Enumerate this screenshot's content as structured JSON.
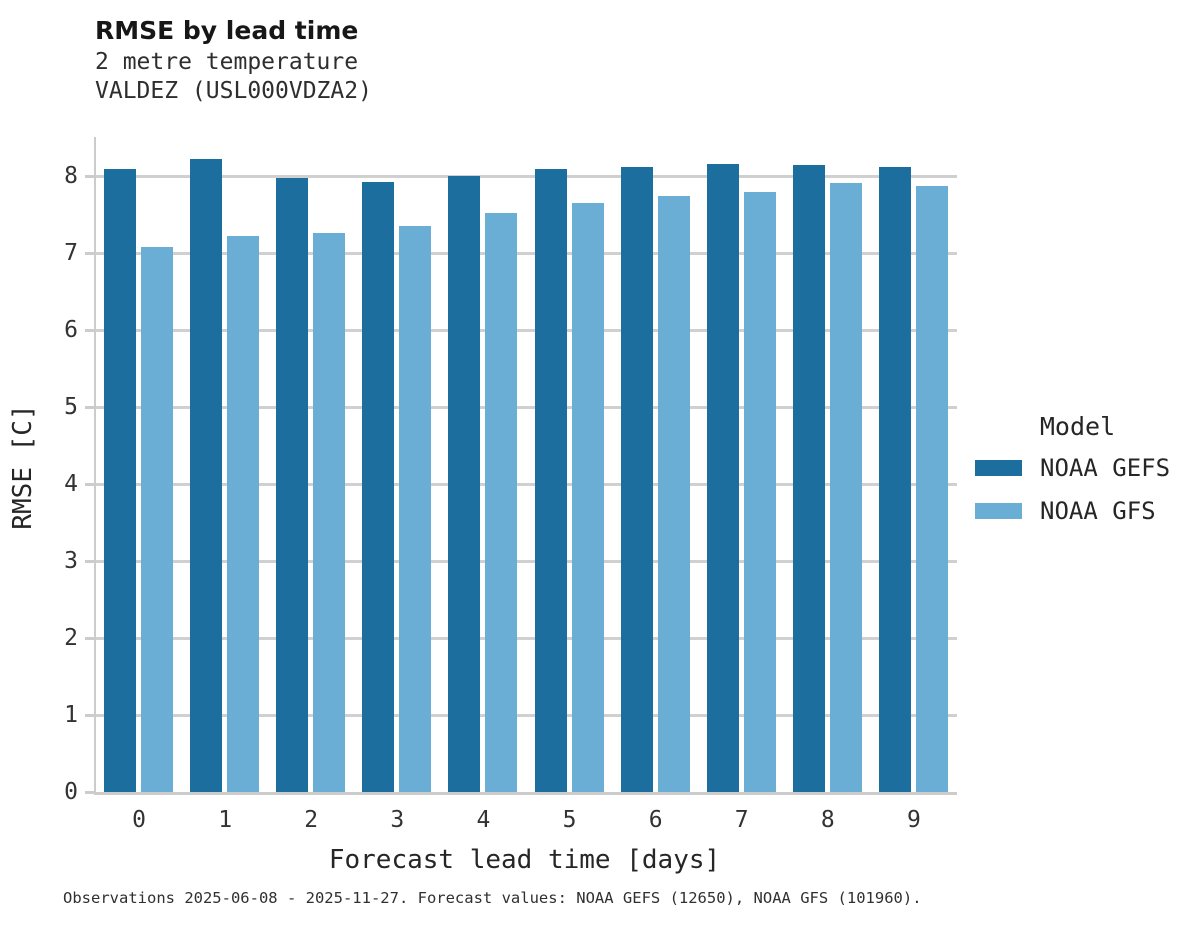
{
  "chart_data": {
    "type": "bar",
    "title": "RMSE by lead time",
    "subtitle": [
      "2 metre temperature",
      "VALDEZ (USL000VDZA2)"
    ],
    "xlabel": "Forecast lead time [days]",
    "ylabel": "RMSE [C]",
    "categories": [
      "0",
      "1",
      "2",
      "3",
      "4",
      "5",
      "6",
      "7",
      "8",
      "9"
    ],
    "series": [
      {
        "name": "NOAA GEFS",
        "color": "#1c6e9e",
        "values": [
          8.09,
          8.21,
          7.97,
          7.92,
          8.0,
          8.08,
          8.11,
          8.15,
          8.14,
          8.11
        ]
      },
      {
        "name": "NOAA GFS",
        "color": "#6aaed6",
        "values": [
          7.07,
          7.21,
          7.25,
          7.34,
          7.52,
          7.65,
          7.74,
          7.78,
          7.9,
          7.86
        ]
      }
    ],
    "ylim": [
      0,
      8.5
    ],
    "yticks": [
      0,
      1,
      2,
      3,
      4,
      5,
      6,
      7,
      8
    ],
    "grid": "horizontal",
    "legend_title": "Model",
    "legend_position": "right"
  },
  "footer": {
    "note": "Observations 2025-06-08 - 2025-11-27. Forecast values: NOAA GEFS (12650), NOAA GFS (101960)."
  },
  "colors": {
    "gefs": "#1c6e9e",
    "gfs": "#6aaed6",
    "grid": "#d0d0d0",
    "axis": "#cccccc",
    "text": "#262626"
  }
}
